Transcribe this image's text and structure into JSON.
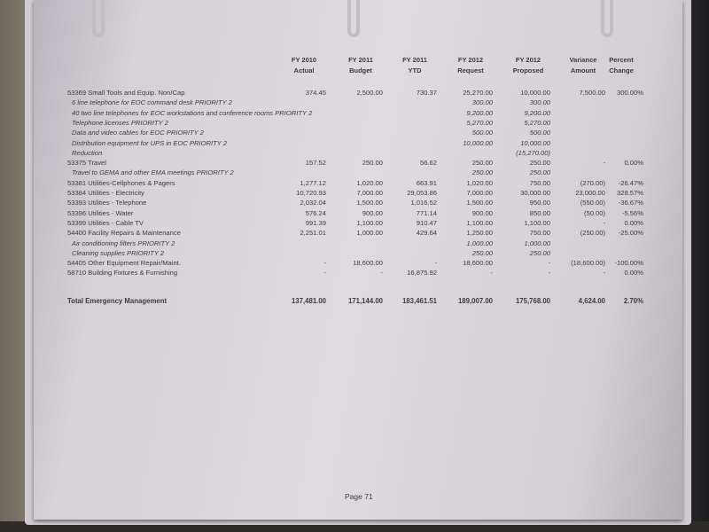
{
  "headers": [
    {
      "line1": "FY 2010",
      "line2": "Actual"
    },
    {
      "line1": "FY 2011",
      "line2": "Budget"
    },
    {
      "line1": "FY 2011",
      "line2": "YTD"
    },
    {
      "line1": "FY 2012",
      "line2": "Request"
    },
    {
      "line1": "FY 2012",
      "line2": "Proposed"
    },
    {
      "line1": "Variance",
      "line2": "Amount"
    },
    {
      "line1": "Percent",
      "line2": "Change"
    }
  ],
  "rows": [
    {
      "type": "item",
      "label": "53369   Small Tools and Equip. Non/Cap",
      "values": [
        "374.45",
        "2,500.00",
        "730.37",
        "25,270.00",
        "10,000.00",
        "7,500.00",
        "300.00%"
      ]
    },
    {
      "type": "sub",
      "label": "6 line telephone for EOC command desk   PRIORITY 2",
      "values": [
        "",
        "",
        "",
        "300.00",
        "300.00",
        "",
        ""
      ]
    },
    {
      "type": "sub",
      "label": "40 two line telephones for EOC workstations and conference rooms   PRIORITY 2",
      "values": [
        "",
        "",
        "",
        "9,200.00",
        "9,200.00",
        "",
        ""
      ]
    },
    {
      "type": "sub",
      "label": "Telephone licenses   PRIORITY 2",
      "values": [
        "",
        "",
        "",
        "5,270.00",
        "5,270.00",
        "",
        ""
      ]
    },
    {
      "type": "sub",
      "label": "Data and video cables for EOC   PRIORITY 2",
      "values": [
        "",
        "",
        "",
        "500.00",
        "500.00",
        "",
        ""
      ]
    },
    {
      "type": "sub",
      "label": "Distribution equipment for UPS in EOC   PRIORITY 2",
      "values": [
        "",
        "",
        "",
        "10,000.00",
        "10,000.00",
        "",
        ""
      ]
    },
    {
      "type": "sub",
      "label": "Reduction",
      "values": [
        "",
        "",
        "",
        "",
        "(15,270.00)",
        "",
        ""
      ]
    },
    {
      "type": "item",
      "label": "53375   Travel",
      "values": [
        "157.52",
        "250.00",
        "56.62",
        "250.00",
        "250.00",
        "-",
        "0.00%"
      ]
    },
    {
      "type": "sub",
      "label": "Travel to GEMA and other EMA meetings   PRIORITY 2",
      "values": [
        "",
        "",
        "",
        "250.00",
        "250.00",
        "",
        ""
      ]
    },
    {
      "type": "item",
      "label": "53381   Utilities-Cellphones & Pagers",
      "values": [
        "1,277.12",
        "1,020.00",
        "663.91",
        "1,020.00",
        "750.00",
        "(270.00)",
        "-26.47%"
      ]
    },
    {
      "type": "item",
      "label": "53384   Utilities - Electricity",
      "values": [
        "10,720.93",
        "7,000.00",
        "29,053.86",
        "7,000.00",
        "30,000.00",
        "23,000.00",
        "328.57%"
      ]
    },
    {
      "type": "item",
      "label": "53393   Utilities - Telephone",
      "values": [
        "2,032.04",
        "1,500.00",
        "1,016.52",
        "1,500.00",
        "950.00",
        "(550.00)",
        "-36.67%"
      ]
    },
    {
      "type": "item",
      "label": "53396   Utilities - Water",
      "values": [
        "576.24",
        "900.00",
        "771.14",
        "900.00",
        "850.00",
        "(50.00)",
        "-5.56%"
      ]
    },
    {
      "type": "item",
      "label": "53399   Utilities - Cable TV",
      "values": [
        "991.39",
        "1,100.00",
        "910.47",
        "1,100.00",
        "1,100.00",
        "-",
        "0.00%"
      ]
    },
    {
      "type": "item",
      "label": "54400   Facility Repairs & Maintenance",
      "values": [
        "2,251.01",
        "1,000.00",
        "429.64",
        "1,250.00",
        "750.00",
        "(250.00)",
        "-25.00%"
      ]
    },
    {
      "type": "sub",
      "label": "Air conditioning filters   PRIORITY 2",
      "values": [
        "",
        "",
        "",
        "1,000.00",
        "1,000.00",
        "",
        ""
      ]
    },
    {
      "type": "sub",
      "label": "Cleaning supplies   PRIORITY 2",
      "values": [
        "",
        "",
        "",
        "250.00",
        "250.00",
        "",
        ""
      ]
    },
    {
      "type": "item",
      "label": "54405   Other Equipment Repair/Maint.",
      "values": [
        "-",
        "18,600.00",
        "-",
        "18,600.00",
        "-",
        "(18,600.00)",
        "-100.00%"
      ]
    },
    {
      "type": "item",
      "label": "58710   Building Fixtures & Furnishing",
      "values": [
        "-",
        "-",
        "16,875.92",
        "-",
        "-",
        "-",
        "0.00%"
      ]
    }
  ],
  "total": {
    "label": "Total Emergency Management",
    "values": [
      "137,481.00",
      "171,144.00",
      "183,461.51",
      "189,007.00",
      "175,768.00",
      "4,624.00",
      "2.70%"
    ]
  },
  "page_number": "Page 71"
}
